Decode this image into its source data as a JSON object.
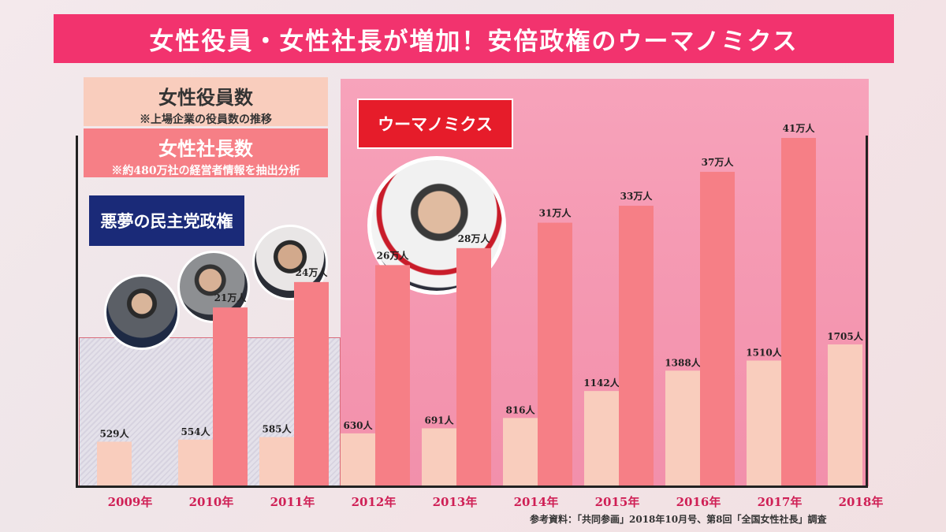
{
  "title": "女性役員・女性社長が増加！安倍政権のウーマノミクス",
  "legend": {
    "executives": {
      "title": "女性役員数",
      "note": "※上場企業の役員数の推移"
    },
    "presidents": {
      "title": "女性社長数",
      "note": "※約480万社の経営者情報を抽出分析"
    }
  },
  "eras": {
    "dpj": {
      "label": "悪夢の民主党政権"
    },
    "abe": {
      "label": "ウーマノミクス"
    }
  },
  "source": "参考資料：「共同参画」2018年10月号、第8回「全国女性社長」調査",
  "colors": {
    "executives": "#f9cdbd",
    "presidents": "#f67f86",
    "title_bg": "#f2336e",
    "dpj_badge": "#1a2a78",
    "abe_badge": "#e61c2a"
  },
  "chart_data": {
    "type": "bar",
    "categories": [
      "2009年",
      "2010年",
      "2011年",
      "2012年",
      "2013年",
      "2014年",
      "2015年",
      "2016年",
      "2017年",
      "2018年"
    ],
    "series": [
      {
        "name": "女性役員数",
        "values": [
          529,
          554,
          585,
          630,
          691,
          816,
          1142,
          1388,
          1510,
          1705
        ],
        "labels": [
          "529人",
          "554人",
          "585人",
          "630人",
          "691人",
          "816人",
          "1142人",
          "1388人",
          "1510人",
          "1705人"
        ]
      },
      {
        "name": "女性社長数",
        "values": [
          null,
          21,
          24,
          26,
          28,
          31,
          33,
          37,
          41,
          null
        ],
        "labels": [
          "",
          "21万人",
          "24万人",
          "26万人",
          "28万人",
          "31万人",
          "33万人",
          "37万人",
          "41万人",
          ""
        ]
      }
    ]
  }
}
